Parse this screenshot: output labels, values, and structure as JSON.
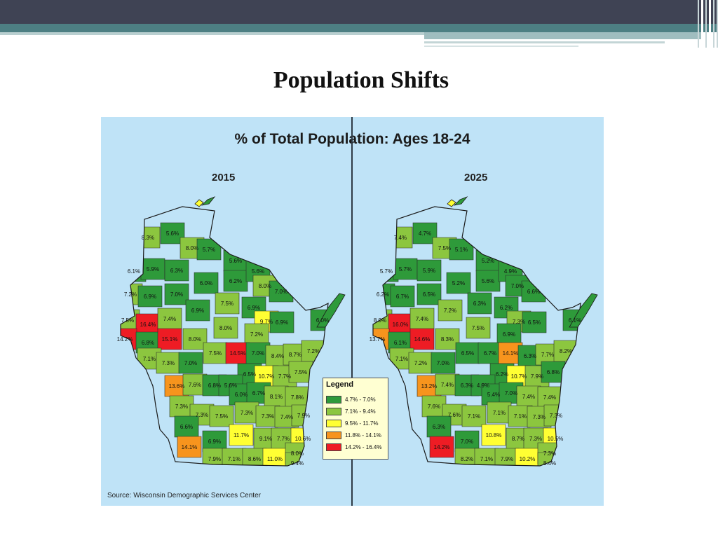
{
  "slide": {
    "title": "Population Shifts"
  },
  "map": {
    "title": "% of Total Population: Ages 18-24",
    "source": "Source: Wisconsin Demographic Services Center",
    "legend": {
      "title": "Legend",
      "items": [
        {
          "label": "4.7% - 7.0%",
          "color": "#2e9a3a"
        },
        {
          "label": "7.1% - 9.4%",
          "color": "#8cc63f"
        },
        {
          "label": "9.5% - 11.7%",
          "color": "#ffff33"
        },
        {
          "label": "11.8% - 14.1%",
          "color": "#f7941d"
        },
        {
          "label": "14.2% - 16.4%",
          "color": "#ee1c24"
        }
      ]
    },
    "maps": [
      {
        "year": "2015",
        "labels": [
          "8.3%",
          "5.6%",
          "8.0%",
          "5.7%",
          "5.6%",
          "6.1%",
          "5.9%",
          "6.3%",
          "6.0%",
          "6.2%",
          "5.6%",
          "8.0%",
          "7.0%",
          "7.2%",
          "6.9%",
          "7.0%",
          "7.5%",
          "6.9%",
          "6.9%",
          "7.5%",
          "16.4%",
          "7.4%",
          "8.0%",
          "9.7%",
          "6.9%",
          "6.0%",
          "14.2%",
          "6.8%",
          "15.1%",
          "8.0%",
          "7.2%",
          "7.5%",
          "14.5%",
          "7.0%",
          "8.4%",
          "8.7%",
          "7.2%",
          "7.1%",
          "7.3%",
          "7.0%",
          "6.5%",
          "10.7%",
          "7.7%",
          "7.5%",
          "13.6%",
          "7.6%",
          "6.8%",
          "5.6%",
          "6.0%",
          "6.7%",
          "8.1%",
          "7.8%",
          "7.3%",
          "7.3%",
          "7.5%",
          "7.3%",
          "7.3%",
          "7.4%",
          "7.9%",
          "6.6%",
          "11.7%",
          "9.1%",
          "7.7%",
          "10.6%",
          "6.9%",
          "14.1%",
          "7.9%",
          "7.1%",
          "8.6%",
          "11.0%",
          "8.0%",
          "9.4%"
        ]
      },
      {
        "year": "2025",
        "labels": [
          "7.4%",
          "4.7%",
          "7.5%",
          "5.1%",
          "5.2%",
          "5.7%",
          "5.7%",
          "5.9%",
          "5.2%",
          "5.6%",
          "4.9%",
          "7.0%",
          "6.6%",
          "6.2%",
          "6.7%",
          "6.5%",
          "6.3%",
          "6.2%",
          "7.2%",
          "8.0%",
          "16.0%",
          "7.4%",
          "7.5%",
          "7.3%",
          "6.5%",
          "6.1%",
          "13.7%",
          "6.1%",
          "14.6%",
          "8.3%",
          "6.9%",
          "6.5%",
          "6.7%",
          "14.1%",
          "6.3%",
          "7.7%",
          "8.2%",
          "7.1%",
          "7.2%",
          "7.0%",
          "6.2%",
          "10.7%",
          "7.9%",
          "6.8%",
          "13.2%",
          "7.4%",
          "6.3%",
          "4.9%",
          "5.4%",
          "7.0%",
          "7.4%",
          "7.4%",
          "7.6%",
          "7.6%",
          "7.1%",
          "7.1%",
          "7.1%",
          "7.3%",
          "7.3%",
          "6.3%",
          "10.8%",
          "8.7%",
          "7.3%",
          "10.5%",
          "7.0%",
          "14.2%",
          "8.2%",
          "7.1%",
          "7.9%",
          "10.2%",
          "7.3%",
          "8.4%"
        ]
      }
    ]
  }
}
